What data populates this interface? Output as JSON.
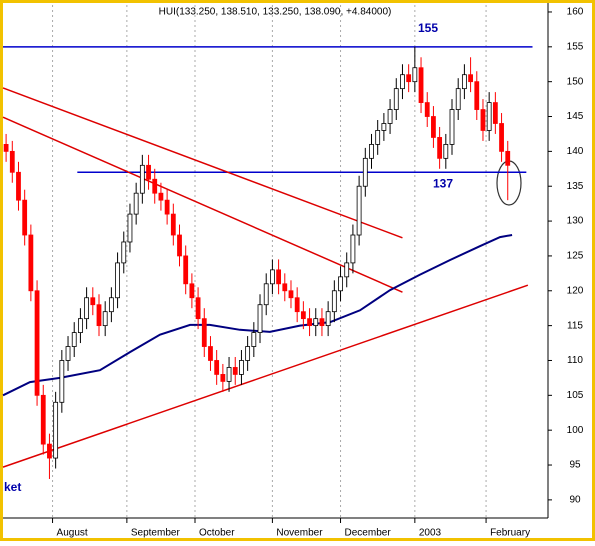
{
  "chart_data": {
    "type": "candlestick",
    "title": "HUI(133.250, 138.510, 133.250, 138.090, +4.84000)",
    "annotation": "ket",
    "x": [
      0,
      2,
      4,
      6,
      8,
      10,
      12,
      14,
      16,
      18,
      20,
      22,
      24,
      26,
      28,
      30,
      32,
      34,
      36,
      38,
      40,
      42,
      44,
      46,
      48,
      50,
      52,
      54,
      56,
      58,
      60,
      62,
      64,
      66,
      68,
      70,
      72,
      74,
      76,
      78,
      80,
      82,
      84,
      86,
      88,
      90,
      92,
      94,
      96,
      98,
      100,
      102,
      104,
      106,
      108,
      110,
      112,
      114,
      116,
      118,
      120,
      122,
      124,
      126,
      128,
      130,
      132,
      134,
      136,
      138,
      140,
      142,
      144,
      146,
      148,
      150,
      152,
      154,
      156,
      158,
      160,
      162
    ],
    "open": [
      141,
      140,
      137,
      133,
      128,
      120,
      105,
      98,
      96,
      104,
      110,
      112,
      114,
      116,
      119,
      118,
      115,
      117,
      119,
      124,
      127,
      131,
      134,
      138,
      136,
      134,
      133,
      131,
      128,
      125,
      121,
      119,
      116,
      112,
      110,
      108,
      107,
      109,
      108,
      110,
      112,
      114,
      118,
      121,
      123,
      121,
      120,
      119,
      117,
      116,
      115,
      116,
      115,
      117,
      120,
      122,
      124,
      128,
      135,
      139,
      141,
      143,
      144,
      146,
      149,
      151,
      150,
      152,
      147,
      145,
      142,
      139,
      141,
      146,
      149,
      151,
      150,
      146,
      143,
      147,
      144,
      140
    ],
    "high": [
      142.5,
      141.5,
      138.5,
      134.5,
      129.5,
      121.5,
      106.5,
      99.5,
      105.5,
      111.5,
      113.5,
      115.5,
      117.5,
      120.5,
      120.5,
      119.5,
      118.5,
      120.5,
      125.5,
      128.5,
      132.5,
      135.5,
      139.5,
      139.5,
      137.5,
      135.5,
      134.5,
      132.5,
      129.5,
      126.5,
      122.5,
      120.5,
      117.5,
      113.5,
      111.5,
      109.5,
      110.5,
      110.5,
      111.5,
      113.5,
      115.5,
      119.5,
      122.5,
      124.5,
      124.5,
      122.5,
      121.5,
      120.5,
      118.5,
      117.5,
      117.5,
      117.5,
      118.5,
      121.5,
      123.5,
      125.5,
      129.5,
      136.5,
      140.5,
      142.5,
      144.5,
      145.5,
      147.5,
      150.5,
      152.5,
      152.5,
      155,
      153.5,
      148.5,
      146.5,
      143.5,
      142.5,
      147.5,
      150.5,
      152.5,
      153.5,
      151.5,
      147.5,
      148.5,
      148.5,
      145.5,
      141.5
    ],
    "low": [
      138.5,
      135.5,
      131.5,
      126.5,
      118.5,
      103.5,
      96.5,
      93,
      94.5,
      102.5,
      108.5,
      110.5,
      112.5,
      114.5,
      116.5,
      113.5,
      113.5,
      115.5,
      117.5,
      122.5,
      125.5,
      129.5,
      132.5,
      134.5,
      132.5,
      131.5,
      129.5,
      126.5,
      123.5,
      119.5,
      117.5,
      114.5,
      110.5,
      108.5,
      106.5,
      105.5,
      105.5,
      106.5,
      106.5,
      108.5,
      110.5,
      112.5,
      116.5,
      119.5,
      119.5,
      118.5,
      117.5,
      115.5,
      114.5,
      113.5,
      113.5,
      113.5,
      113.5,
      115.5,
      118.5,
      120.5,
      122.5,
      126.5,
      133.5,
      137.5,
      139.5,
      141.5,
      142.5,
      144.5,
      147.5,
      148.5,
      148.5,
      145.5,
      143.5,
      140.5,
      137.5,
      137.5,
      139.5,
      144.5,
      147.5,
      148.5,
      144.5,
      141.5,
      141.5,
      142.5,
      138.5,
      133
    ],
    "close": [
      140,
      137,
      133,
      128,
      120,
      105,
      98,
      96,
      104,
      110,
      112,
      114,
      116,
      119,
      118,
      115,
      117,
      119,
      124,
      127,
      131,
      134,
      138,
      136,
      134,
      133,
      131,
      128,
      125,
      121,
      119,
      116,
      112,
      110,
      108,
      107,
      109,
      108,
      110,
      112,
      114,
      118,
      121,
      123,
      121,
      120,
      119,
      117,
      116,
      115,
      116,
      115,
      117,
      120,
      122,
      124,
      128,
      135,
      139,
      141,
      143,
      144,
      146,
      149,
      151,
      150,
      152,
      147,
      145,
      142,
      139,
      141,
      146,
      149,
      151,
      150,
      146,
      143,
      147,
      144,
      140,
      138
    ],
    "up_color": "#000000",
    "down_color": "#ff0000",
    "ma": {
      "color": "#000080",
      "x": [
        -1,
        7.7,
        17.4,
        30.3,
        40,
        49.7,
        59.4,
        65.8,
        75.5,
        85.2,
        94.9,
        104.6,
        114.3,
        124,
        133.6,
        143.3,
        153,
        159.5,
        163.4
      ],
      "values": [
        105,
        106.9,
        107.5,
        108.6,
        111.2,
        113.7,
        115.1,
        115.1,
        114.4,
        114.1,
        115,
        115.5,
        117.2,
        120.1,
        122.3,
        124.4,
        126.4,
        127.7,
        128
      ]
    },
    "hlines": [
      {
        "value": 155,
        "color": "#0000cc",
        "x": [
          -1,
          170
        ]
      },
      {
        "value": 137,
        "color": "#0000cc",
        "x": [
          23,
          168
        ]
      }
    ],
    "trendlines": [
      {
        "color": "#dd0000",
        "x": [
          -1,
          128
        ],
        "values": [
          149.1,
          127.6
        ]
      },
      {
        "color": "#dd0000",
        "x": [
          -1,
          128
        ],
        "values": [
          144.9,
          119.8
        ]
      },
      {
        "color": "#dd0000",
        "x": [
          -1,
          168.5
        ],
        "values": [
          94.7,
          120.8
        ]
      }
    ],
    "xlim": [
      -1,
      175
    ],
    "ylim": [
      87.4,
      161
    ],
    "yticks": [
      90,
      95,
      100,
      105,
      110,
      115,
      120,
      125,
      130,
      135,
      140,
      145,
      150,
      155,
      160
    ],
    "xticks": [
      {
        "value": 15,
        "label": "August"
      },
      {
        "value": 39,
        "label": "September"
      },
      {
        "value": 61,
        "label": "October"
      },
      {
        "value": 86,
        "label": "November"
      },
      {
        "value": 108,
        "label": "December"
      },
      {
        "value": 132,
        "label": "2003"
      },
      {
        "value": 155,
        "label": "February"
      }
    ],
    "grid": true
  }
}
